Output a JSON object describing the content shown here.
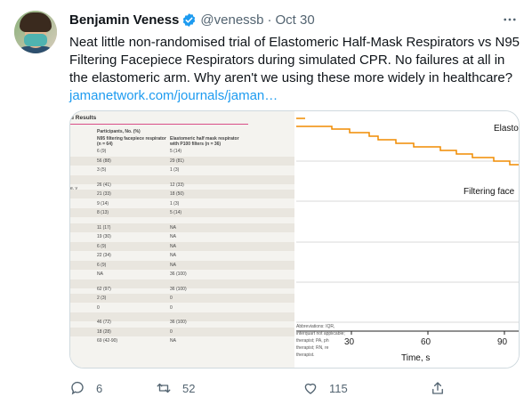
{
  "tweet": {
    "author_name": "Benjamin Veness",
    "handle": "@venessb",
    "separator": "·",
    "time": "Oct 30",
    "text_main": "Neat little non-randomised trial of Elastomeric Half-Mask Respirators vs N95 Filtering Facepiece Respirators during simulated CPR. No failures at all in the elastomeric arm. Why aren't we using these more widely in healthcare? ",
    "link_text": "jamanetwork.com/journals/jaman…"
  },
  "media": {
    "left": {
      "title": "d Results",
      "group_header": "Participants, No. (%)",
      "col1_header": "N95 filtering facepiece respirator (n = 64)",
      "col2_header": "Elastomeric half mask respirator with P100 filters (n = 36)",
      "row_label_y": "e, y",
      "rows": [
        {
          "a": "6 (9)",
          "b": "5 (14)"
        },
        {
          "a": "56 (88)",
          "b": "29 (81)"
        },
        {
          "a": "3 (5)",
          "b": "1 (3)"
        },
        {
          "a": "",
          "b": ""
        },
        {
          "a": "26 (41)",
          "b": "12 (33)"
        },
        {
          "a": "21 (33)",
          "b": "18 (50)"
        },
        {
          "a": "9 (14)",
          "b": "1 (3)"
        },
        {
          "a": "8 (13)",
          "b": "5 (14)"
        },
        {
          "a": "",
          "b": ""
        },
        {
          "a": "11 (17)",
          "b": "NA"
        },
        {
          "a": "19 (30)",
          "b": "NA"
        },
        {
          "a": "6 (9)",
          "b": "NA"
        },
        {
          "a": "22 (34)",
          "b": "NA"
        },
        {
          "a": "6 (9)",
          "b": "NA"
        },
        {
          "a": "NA",
          "b": "36 (100)"
        },
        {
          "a": "",
          "b": ""
        },
        {
          "a": "62 (97)",
          "b": "36 (100)"
        },
        {
          "a": "2 (3)",
          "b": "0"
        },
        {
          "a": "0",
          "b": "0"
        },
        {
          "a": "",
          "b": ""
        },
        {
          "a": "46 (72)",
          "b": "36 (100)"
        },
        {
          "a": "18 (28)",
          "b": "0"
        },
        {
          "a": "69 (42-90)",
          "b": "NA"
        }
      ]
    },
    "right": {
      "series_label_top": "Elasto",
      "series_label_bottom": "Filtering face",
      "abbreviations": "Abbreviations: IQR, interquart not applicable; therapist; PA, ph therapist; RN, re therapist.",
      "xlabel": "Time, s",
      "x_ticks": [
        "30",
        "60",
        "90"
      ]
    }
  },
  "actions": {
    "reply_count": "6",
    "retweet_count": "52",
    "like_count": "115"
  },
  "colors": {
    "link": "#1d9bf0",
    "verified": "#1d9bf0",
    "secondary_text": "#536471",
    "curve": "#f08c00"
  }
}
